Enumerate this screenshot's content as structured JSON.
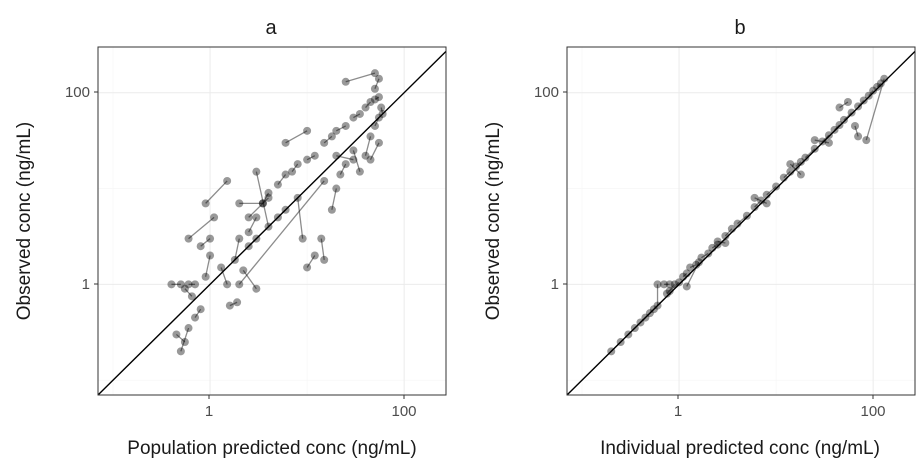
{
  "chart_data": [
    {
      "panel": "a",
      "type": "scatter",
      "title": "a",
      "xlabel": "Population predicted conc (ng/mL)",
      "ylabel": "Observed conc (ng/mL)",
      "x_scale": "log10",
      "y_scale": "log10",
      "xlim": [
        0.07,
        270
      ],
      "ylim": [
        0.07,
        300
      ],
      "x_ticks": [
        1,
        100
      ],
      "x_tick_labels": [
        "1",
        "100"
      ],
      "y_ticks": [
        1,
        100
      ],
      "y_tick_labels": [
        "1",
        "100"
      ],
      "grid": true,
      "reference_line": "identity (y = x)",
      "series": [
        {
          "style": "points joined by lines within subject",
          "points": [
            [
              0.4,
              1
            ],
            [
              0.5,
              1
            ],
            [
              0.6,
              1
            ],
            [
              0.7,
              1
            ],
            [
              0.55,
              0.9
            ],
            [
              0.65,
              0.75
            ],
            [
              0.8,
              0.55
            ],
            [
              0.7,
              0.45
            ],
            [
              0.6,
              0.35
            ],
            [
              0.5,
              0.2
            ],
            [
              0.45,
              0.3
            ],
            [
              0.55,
              0.25
            ],
            [
              0.9,
              1.2
            ],
            [
              1.0,
              2
            ],
            [
              0.8,
              2.5
            ],
            [
              1.0,
              3
            ],
            [
              0.6,
              3
            ],
            [
              1.1,
              5
            ],
            [
              0.9,
              7
            ],
            [
              1.5,
              12
            ],
            [
              2,
              7
            ],
            [
              3.5,
              7
            ],
            [
              4,
              8
            ],
            [
              2.5,
              5
            ],
            [
              1.3,
              1.5
            ],
            [
              1.5,
              1
            ],
            [
              1.8,
              1.8
            ],
            [
              2,
              3
            ],
            [
              2.5,
              3.5
            ],
            [
              3,
              5
            ],
            [
              3.5,
              7
            ],
            [
              4,
              9
            ],
            [
              5,
              11
            ],
            [
              6,
              14
            ],
            [
              7,
              15
            ],
            [
              8,
              18
            ],
            [
              10,
              20
            ],
            [
              12,
              22
            ],
            [
              15,
              30
            ],
            [
              18,
              35
            ],
            [
              20,
              40
            ],
            [
              25,
              45
            ],
            [
              30,
              55
            ],
            [
              35,
              60
            ],
            [
              40,
              70
            ],
            [
              45,
              80
            ],
            [
              50,
              85
            ],
            [
              55,
              90
            ],
            [
              50,
              110
            ],
            [
              55,
              140
            ],
            [
              50,
              160
            ],
            [
              25,
              130
            ],
            [
              10,
              40
            ],
            [
              6,
              30
            ],
            [
              3,
              15
            ],
            [
              4,
              4
            ],
            [
              5,
              5
            ],
            [
              6,
              6
            ],
            [
              8,
              8
            ],
            [
              9,
              3
            ],
            [
              10,
              1.5
            ],
            [
              12,
              2
            ],
            [
              14,
              3
            ],
            [
              15,
              1.8
            ],
            [
              18,
              6
            ],
            [
              20,
              10
            ],
            [
              22,
              14
            ],
            [
              25,
              18
            ],
            [
              30,
              25
            ],
            [
              35,
              15
            ],
            [
              40,
              22
            ],
            [
              45,
              35
            ],
            [
              50,
              45
            ],
            [
              55,
              55
            ],
            [
              60,
              60
            ],
            [
              58,
              70
            ],
            [
              55,
              30
            ],
            [
              45,
              20
            ],
            [
              30,
              20
            ],
            [
              20,
              22
            ],
            [
              15,
              12
            ],
            [
              2,
              1
            ],
            [
              2.2,
              1.4
            ],
            [
              3,
              0.9
            ],
            [
              1.6,
              0.6
            ],
            [
              1.9,
              0.65
            ],
            [
              2.5,
              2.5
            ],
            [
              3,
              3
            ]
          ]
        }
      ]
    },
    {
      "panel": "b",
      "type": "scatter",
      "title": "b",
      "xlabel": "Individual predicted conc (ng/mL)",
      "ylabel": "Observed conc (ng/mL)",
      "x_scale": "log10",
      "y_scale": "log10",
      "xlim": [
        0.07,
        270
      ],
      "ylim": [
        0.07,
        300
      ],
      "x_ticks": [
        1,
        100
      ],
      "x_tick_labels": [
        "1",
        "100"
      ],
      "y_ticks": [
        1,
        100
      ],
      "y_tick_labels": [
        "1",
        "100"
      ],
      "grid": true,
      "reference_line": "identity (y = x)",
      "series": [
        {
          "style": "points joined by lines within subject",
          "points": [
            [
              0.2,
              0.2
            ],
            [
              0.25,
              0.25
            ],
            [
              0.3,
              0.3
            ],
            [
              0.35,
              0.35
            ],
            [
              0.4,
              0.4
            ],
            [
              0.45,
              0.45
            ],
            [
              0.5,
              0.5
            ],
            [
              0.55,
              0.55
            ],
            [
              0.6,
              0.6
            ],
            [
              0.6,
              1
            ],
            [
              0.7,
              1
            ],
            [
              0.8,
              1
            ],
            [
              0.9,
              1
            ],
            [
              0.75,
              0.8
            ],
            [
              0.8,
              0.85
            ],
            [
              1.0,
              1.05
            ],
            [
              1.1,
              1.2
            ],
            [
              1.2,
              1.3
            ],
            [
              1.3,
              1.5
            ],
            [
              1.5,
              1.6
            ],
            [
              1.7,
              1.9
            ],
            [
              2,
              2.1
            ],
            [
              2.2,
              2.4
            ],
            [
              2.5,
              2.6
            ],
            [
              3,
              3.2
            ],
            [
              3.5,
              3.8
            ],
            [
              4,
              4.3
            ],
            [
              5,
              5.2
            ],
            [
              6,
              6.4
            ],
            [
              7,
              7.5
            ],
            [
              8,
              8.6
            ],
            [
              10,
              10.5
            ],
            [
              12,
              13
            ],
            [
              14,
              15
            ],
            [
              16,
              17
            ],
            [
              18,
              19
            ],
            [
              20,
              21
            ],
            [
              25,
              26
            ],
            [
              30,
              31
            ],
            [
              35,
              36
            ],
            [
              40,
              41
            ],
            [
              45,
              46
            ],
            [
              50,
              52
            ],
            [
              60,
              62
            ],
            [
              70,
              72
            ],
            [
              80,
              83
            ],
            [
              90,
              93
            ],
            [
              100,
              105
            ],
            [
              110,
              115
            ],
            [
              120,
              125
            ],
            [
              130,
              140
            ],
            [
              85,
              32
            ],
            [
              70,
              35
            ],
            [
              65,
              45
            ],
            [
              45,
              70
            ],
            [
              55,
              80
            ],
            [
              25,
              32
            ],
            [
              35,
              30
            ],
            [
              18,
              14
            ],
            [
              14,
              18
            ],
            [
              8,
              7
            ],
            [
              6,
              8
            ],
            [
              3,
              2.7
            ],
            [
              2.5,
              2.8
            ],
            [
              1.2,
              0.95
            ],
            [
              1.6,
              1.7
            ]
          ]
        }
      ]
    }
  ]
}
